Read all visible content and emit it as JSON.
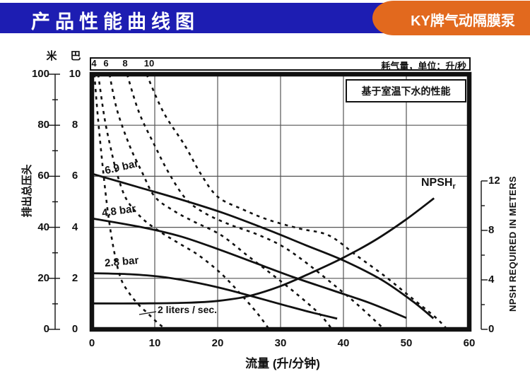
{
  "header": {
    "title": "产品性能曲线图",
    "badge": "KY牌气动隔膜泵",
    "title_bg": "#1d1db2",
    "badge_bg": "#e2691e"
  },
  "top_strip": {
    "air_values": [
      "4",
      "6",
      "8",
      "10"
    ],
    "label": "耗气量，单位：升/秒"
  },
  "note_box": {
    "text": "基于室温下水的性能"
  },
  "axes": {
    "left_meters": {
      "header": "米",
      "title": "排出总压头",
      "ticks": [
        "100",
        "80",
        "60",
        "40",
        "20",
        "0"
      ]
    },
    "left_bar": {
      "header": "巴",
      "ticks": [
        "10",
        "8",
        "6",
        "4",
        "2",
        "0"
      ]
    },
    "bottom": {
      "title": "流量 (升/分钟)",
      "ticks": [
        "0",
        "10",
        "20",
        "30",
        "40",
        "50",
        "60"
      ]
    },
    "right": {
      "title": "NPSH REQUIRED IN METERS",
      "ticks": [
        "12",
        "8",
        "4",
        "0"
      ]
    }
  },
  "curve_labels": {
    "c69": "6.9 bar",
    "c48": "4.8 bar",
    "c28": "2.8 bar",
    "liters": "2 liters / sec.",
    "npsh_main": "NPSH",
    "npsh_sub": "r"
  },
  "chart_data": {
    "type": "line",
    "title": "产品性能曲线图 (pump performance curves)",
    "xlabel": "流量 (升/分钟)",
    "xlim": [
      0,
      60
    ],
    "ylabel_left": "排出总压头 (米 0-100 / 巴 0-10)",
    "ylim_left_meters": [
      0,
      100
    ],
    "ylabel_right": "NPSH REQUIRED IN METERS",
    "ylim_right": [
      0,
      12
    ],
    "grid": true,
    "x_major_ticks": [
      0,
      10,
      20,
      30,
      40,
      50,
      60
    ],
    "left_major_ticks_m": [
      0,
      20,
      40,
      60,
      80,
      100
    ],
    "right_major_ticks": [
      0,
      4,
      8,
      12
    ],
    "series": [
      {
        "name": "6.9 bar",
        "style": "solid",
        "axis": "meters",
        "points": [
          [
            0,
            61
          ],
          [
            7,
            56
          ],
          [
            14,
            51
          ],
          [
            21,
            45.5
          ],
          [
            28,
            39
          ],
          [
            34,
            33
          ],
          [
            40,
            27
          ],
          [
            46,
            19.5
          ],
          [
            51,
            11
          ],
          [
            54.3,
            4.3
          ]
        ]
      },
      {
        "name": "4.8 bar",
        "style": "solid",
        "axis": "meters",
        "points": [
          [
            0,
            43.5
          ],
          [
            8,
            40
          ],
          [
            14,
            36.5
          ],
          [
            20,
            31.5
          ],
          [
            26,
            26
          ],
          [
            32,
            20.5
          ],
          [
            38,
            15.5
          ],
          [
            44,
            10.5
          ],
          [
            50,
            4.5
          ]
        ]
      },
      {
        "name": "2.8 bar",
        "style": "solid",
        "axis": "meters",
        "points": [
          [
            0,
            22
          ],
          [
            6,
            21.6
          ],
          [
            11,
            20.6
          ],
          [
            16,
            18.6
          ],
          [
            21,
            15.9
          ],
          [
            26,
            12.6
          ],
          [
            31,
            9.2
          ],
          [
            35,
            6.6
          ],
          [
            39,
            4.2
          ]
        ]
      },
      {
        "name": "NPSHr",
        "style": "solid",
        "axis": "npsh",
        "points": [
          [
            0,
            2.1
          ],
          [
            8,
            2.1
          ],
          [
            15,
            2.15
          ],
          [
            20,
            2.3
          ],
          [
            25,
            2.7
          ],
          [
            30,
            3.5
          ],
          [
            35,
            4.6
          ],
          [
            40,
            5.8
          ],
          [
            45,
            7.2
          ],
          [
            50,
            8.9
          ],
          [
            54.4,
            10.6
          ]
        ]
      },
      {
        "name": "2 liters/sec",
        "style": "dashed",
        "axis": "meters",
        "points": [
          [
            0.4,
            100
          ],
          [
            1,
            82
          ],
          [
            1.8,
            62
          ],
          [
            2.6,
            45
          ],
          [
            3.5,
            31
          ],
          [
            4.6,
            20
          ],
          [
            6,
            14
          ],
          [
            7.5,
            9.5
          ],
          [
            9,
            6
          ],
          [
            10.5,
            2.5
          ],
          [
            11.8,
            0
          ]
        ]
      },
      {
        "name": "4 liters/sec",
        "style": "dashed",
        "axis": "meters",
        "points": [
          [
            1,
            100
          ],
          [
            2,
            83
          ],
          [
            3,
            71
          ],
          [
            4,
            61
          ],
          [
            5.5,
            51
          ],
          [
            8,
            43.5
          ],
          [
            11,
            38
          ],
          [
            14,
            33.5
          ],
          [
            17,
            29
          ],
          [
            20.5,
            22
          ],
          [
            23.6,
            14
          ],
          [
            26.4,
            6
          ],
          [
            28.2,
            0
          ]
        ]
      },
      {
        "name": "6 liters/sec",
        "style": "dashed",
        "axis": "meters",
        "points": [
          [
            2.8,
            100
          ],
          [
            4,
            86
          ],
          [
            6,
            72
          ],
          [
            8,
            61.5
          ],
          [
            10,
            52
          ],
          [
            13,
            46.5
          ],
          [
            16,
            42.5
          ],
          [
            20.5,
            37
          ],
          [
            24.7,
            29
          ],
          [
            28.4,
            22
          ],
          [
            32.5,
            14
          ],
          [
            36.2,
            6
          ],
          [
            38.2,
            0
          ]
        ]
      },
      {
        "name": "8 liters/sec",
        "style": "dashed",
        "axis": "meters",
        "points": [
          [
            5.6,
            100
          ],
          [
            7.5,
            85
          ],
          [
            10,
            72
          ],
          [
            12.3,
            61
          ],
          [
            15,
            51
          ],
          [
            18,
            45.5
          ],
          [
            22,
            41
          ],
          [
            26,
            37.5
          ],
          [
            30,
            33
          ],
          [
            33.6,
            27
          ],
          [
            37.7,
            19
          ],
          [
            42.1,
            10
          ],
          [
            46.5,
            0
          ]
        ]
      },
      {
        "name": "10 liters/sec",
        "style": "dashed",
        "axis": "meters",
        "points": [
          [
            8.7,
            100
          ],
          [
            11.4,
            85
          ],
          [
            14.8,
            72
          ],
          [
            17.3,
            61
          ],
          [
            20,
            52
          ],
          [
            24,
            47
          ],
          [
            28,
            43
          ],
          [
            33,
            39.5
          ],
          [
            37.7,
            36.8
          ],
          [
            42.1,
            28.9
          ],
          [
            46.5,
            21
          ],
          [
            50.5,
            13
          ],
          [
            54.5,
            5
          ],
          [
            56.5,
            0
          ]
        ]
      }
    ],
    "annotations": [
      "6.9 bar",
      "4.8 bar",
      "2.8 bar",
      "2 liters / sec.",
      "NPSHr",
      "基于室温下水的性能",
      "耗气量，单位：升/秒"
    ]
  },
  "colors": {
    "ink": "#111111",
    "grid": "#555555",
    "blue": "#1d1db2",
    "orange": "#e2691e"
  }
}
